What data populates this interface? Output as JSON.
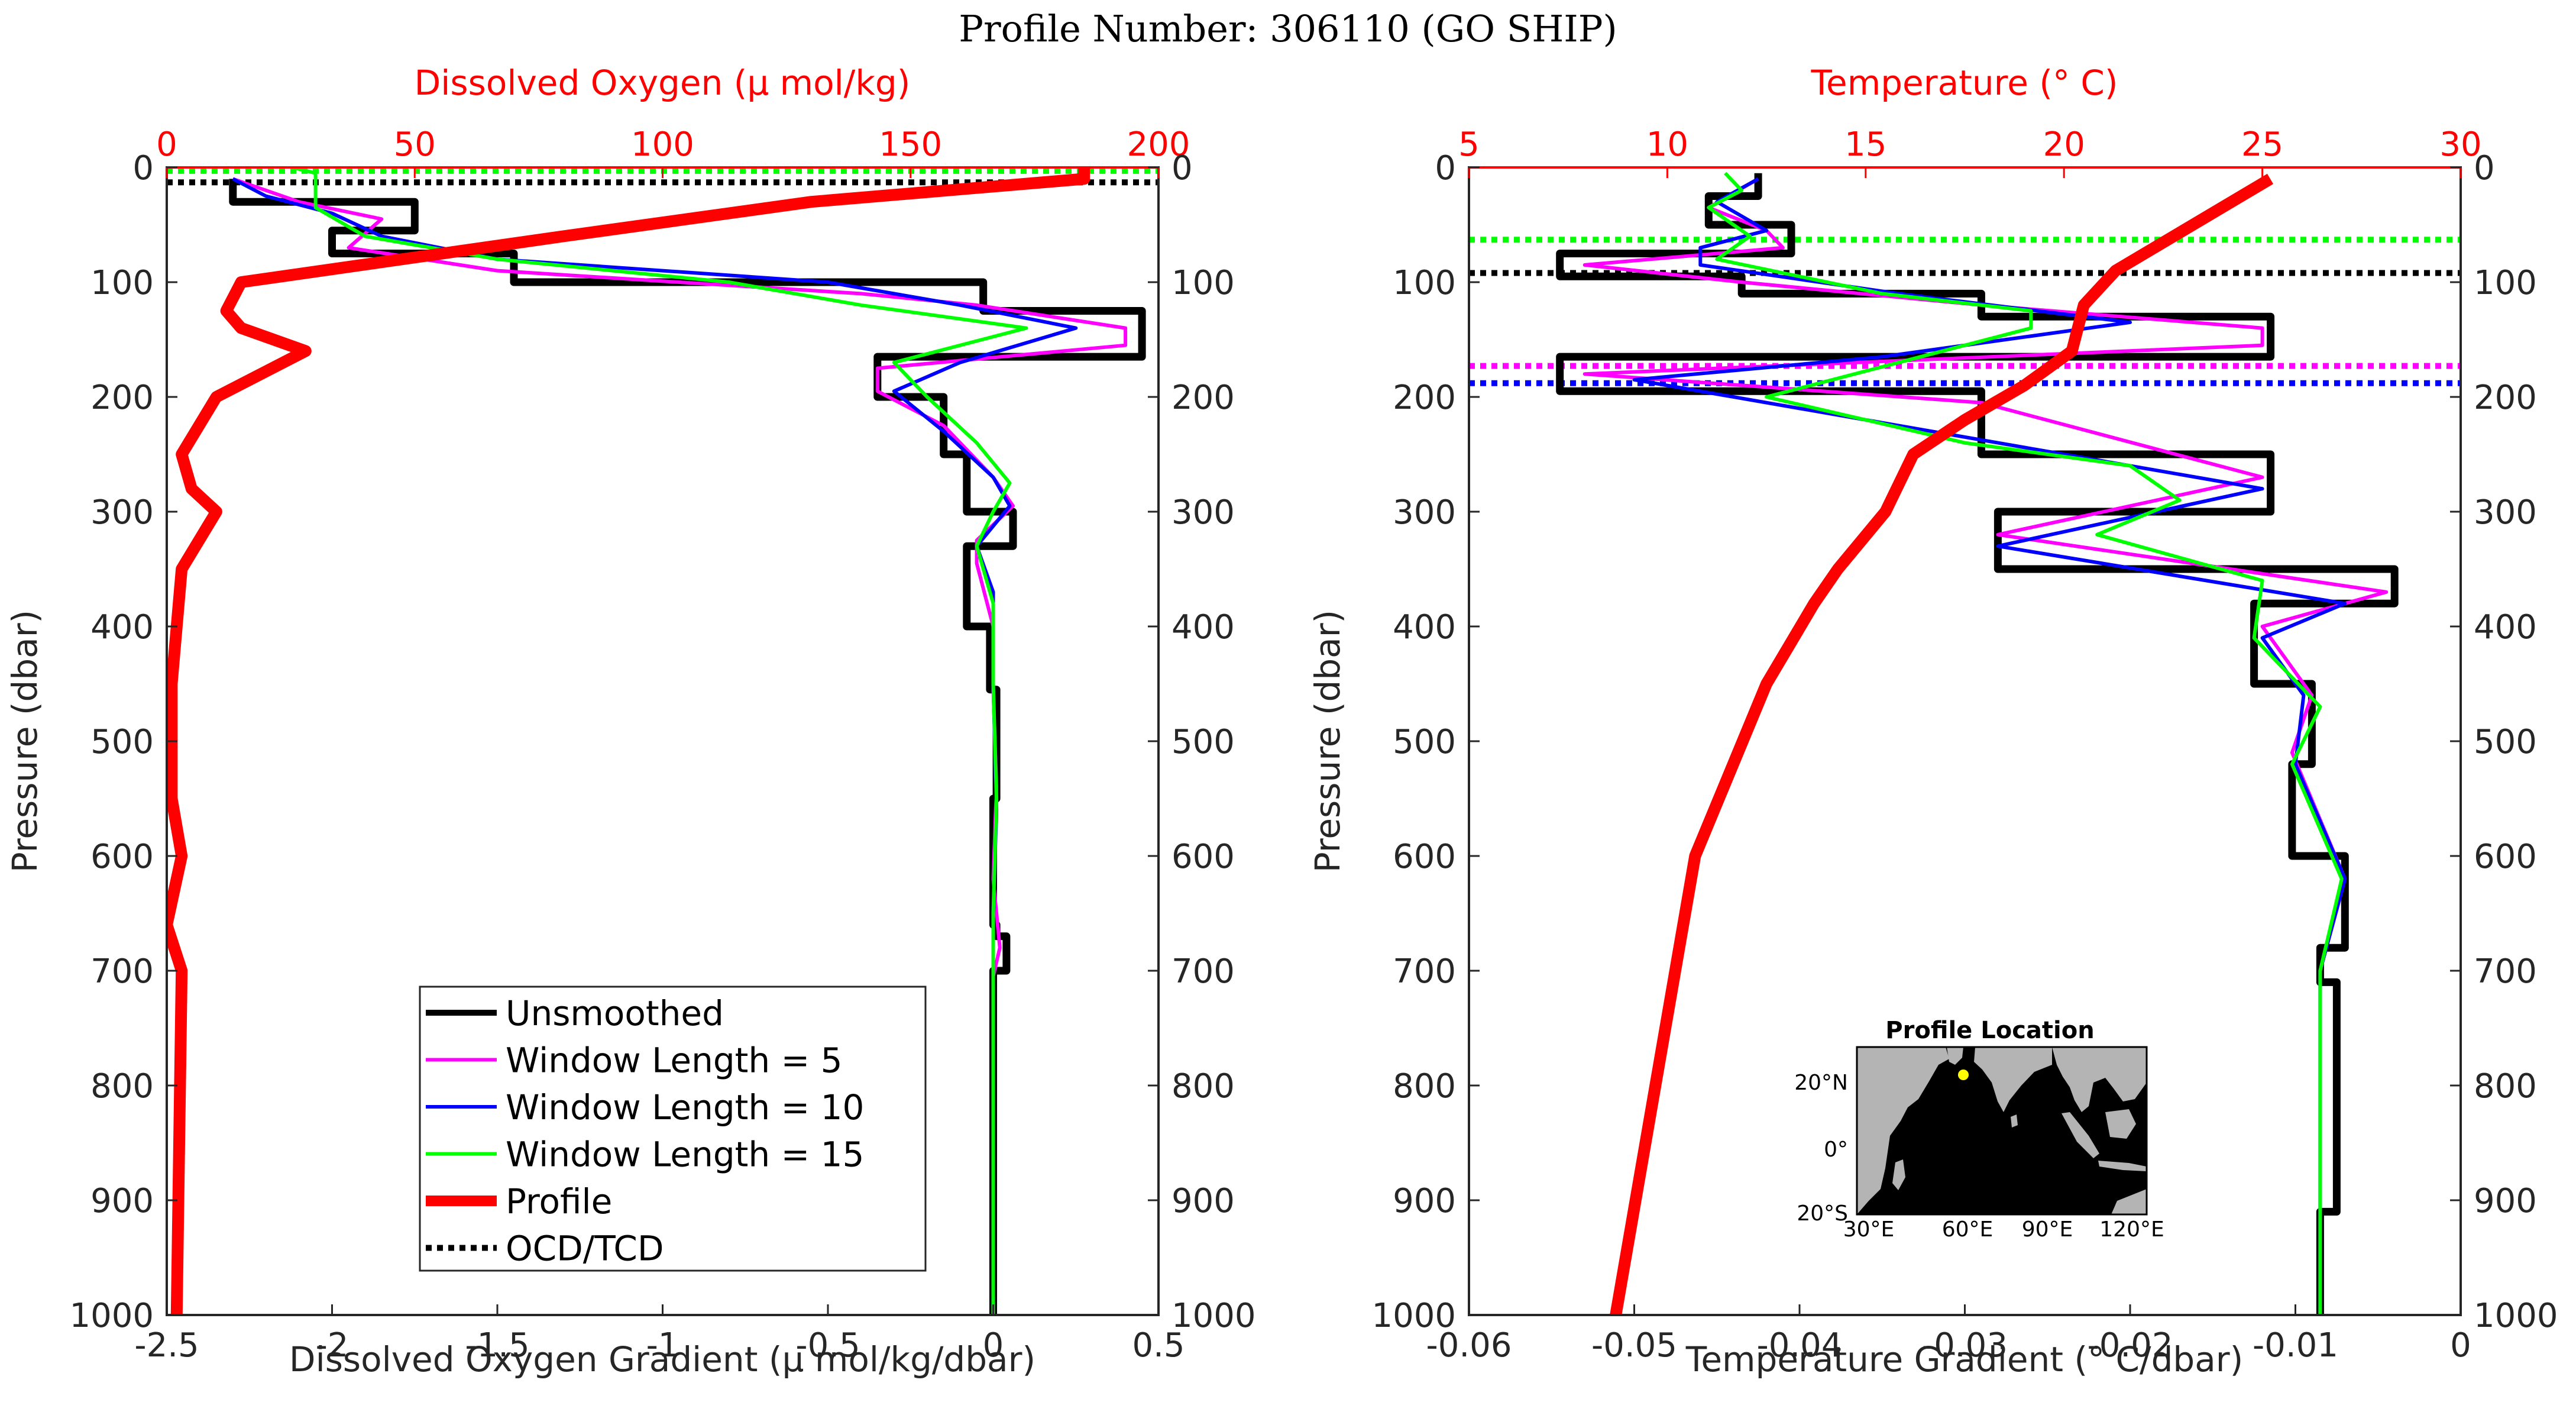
{
  "figure_title": "Profile Number: 306110 (GO SHIP)",
  "colors": {
    "unsmoothed": "#000000",
    "w5": "#ff00ff",
    "w10": "#0000ff",
    "w15": "#00ff00",
    "profile": "#ff0000",
    "top_axis": "#ff0000",
    "land": "#b4b4b4",
    "ocean": "#000000",
    "marker": "#ffff00"
  },
  "chart_data": [
    {
      "type": "line",
      "panel": "left",
      "title": "",
      "xlabel": "Dissolved Oxygen Gradient (μ mol/kg/dbar)",
      "ylabel": "Pressure (dbar)",
      "top_xlabel": "Dissolved Oxygen (μ mol/kg)",
      "xlim": [
        -2.5,
        0.5
      ],
      "top_xlim": [
        0,
        200
      ],
      "ylim": [
        0,
        1000
      ],
      "y_reversed": true,
      "xticks": [
        "-2.5",
        "-2",
        "-1.5",
        "-1",
        "-0.5",
        "0",
        "0.5"
      ],
      "top_xticks": [
        "0",
        "50",
        "100",
        "150",
        "200"
      ],
      "yticks": [
        "0",
        "100",
        "200",
        "300",
        "400",
        "500",
        "600",
        "700",
        "800",
        "900",
        "1000"
      ],
      "right_yticks": [
        "0",
        "100",
        "200",
        "300",
        "400",
        "500",
        "600",
        "700",
        "800",
        "900",
        "1000"
      ],
      "legend": {
        "placement": "lower-center",
        "entries": [
          "Unsmoothed",
          "Window Length = 5",
          "Window Length = 10",
          "Window Length = 15",
          "Profile",
          "OCD/TCD"
        ]
      },
      "series": [
        {
          "name": "Unsmoothed",
          "axis": "bottom",
          "style": "step",
          "color_key": "unsmoothed",
          "x": [
            -2.3,
            -2.3,
            -1.75,
            -1.75,
            -2.0,
            -2.0,
            -1.45,
            -1.45,
            -0.03,
            -0.03,
            0.45,
            0.45,
            -0.35,
            -0.35,
            -0.15,
            -0.15,
            -0.08,
            -0.08,
            0.06,
            0.06,
            -0.08,
            -0.08,
            -0.01,
            -0.01,
            0.01,
            0.01,
            0.0,
            0.0,
            0.01,
            0.01,
            0.04,
            0.04,
            0.0,
            0.0,
            0.0
          ],
          "y": [
            10,
            30,
            30,
            55,
            55,
            75,
            75,
            100,
            100,
            125,
            125,
            165,
            165,
            200,
            200,
            250,
            250,
            300,
            300,
            330,
            330,
            400,
            400,
            455,
            455,
            550,
            550,
            660,
            660,
            670,
            670,
            700,
            700,
            800,
            1000
          ]
        },
        {
          "name": "Window Length = 5",
          "axis": "bottom",
          "color_key": "w5",
          "x": [
            -2.3,
            -2.1,
            -1.85,
            -1.95,
            -1.5,
            -0.4,
            -0.05,
            0.4,
            0.4,
            -0.35,
            -0.35,
            -0.15,
            0.0,
            0.06,
            -0.05,
            -0.05,
            0.0,
            0.0,
            0.01,
            0.0,
            0.02,
            0.0,
            0.0
          ],
          "y": [
            10,
            30,
            45,
            70,
            90,
            110,
            120,
            140,
            155,
            175,
            195,
            225,
            270,
            295,
            325,
            345,
            400,
            455,
            540,
            620,
            680,
            705,
            1000
          ]
        },
        {
          "name": "Window Length = 10",
          "axis": "bottom",
          "color_key": "w10",
          "x": [
            -2.3,
            -2.2,
            -2.0,
            -1.85,
            -1.5,
            -0.5,
            -0.1,
            0.25,
            -0.1,
            -0.3,
            -0.15,
            0.0,
            0.05,
            -0.05,
            0.0,
            0.0,
            0.01,
            0.0,
            0.0
          ],
          "y": [
            10,
            25,
            40,
            60,
            80,
            100,
            120,
            140,
            170,
            195,
            230,
            270,
            295,
            330,
            370,
            450,
            560,
            650,
            1000
          ]
        },
        {
          "name": "Window Length = 15",
          "axis": "bottom",
          "color_key": "w15",
          "x": [
            -2.12,
            -2.05,
            -2.05,
            -1.9,
            -1.5,
            -0.8,
            -0.4,
            0.1,
            -0.3,
            -0.2,
            -0.05,
            0.05,
            0.0,
            -0.05,
            0.0,
            0.0,
            0.01,
            0.0,
            0.0
          ],
          "y": [
            0,
            5,
            35,
            60,
            80,
            100,
            120,
            140,
            170,
            200,
            240,
            275,
            300,
            330,
            380,
            450,
            550,
            650,
            1000
          ]
        },
        {
          "name": "Profile",
          "axis": "top",
          "color_key": "profile",
          "x": [
            185,
            185,
            130,
            80,
            15,
            12,
            15,
            28,
            10,
            3,
            5,
            10,
            3,
            1,
            1,
            3,
            0,
            3,
            2
          ],
          "y": [
            0,
            10,
            30,
            60,
            100,
            125,
            140,
            160,
            200,
            250,
            280,
            300,
            350,
            450,
            550,
            600,
            660,
            700,
            1000
          ]
        }
      ],
      "threshold_lines": [
        {
          "y": 3,
          "color_key": "w15"
        },
        {
          "y": 13,
          "color_key": "unsmoothed"
        }
      ]
    },
    {
      "type": "line",
      "panel": "right",
      "title": "",
      "xlabel": "Temperature Gradient (° C/dbar)",
      "ylabel": "Pressure (dbar)",
      "top_xlabel": "Temperature (° C)",
      "xlim": [
        -0.06,
        0
      ],
      "top_xlim": [
        5,
        30
      ],
      "ylim": [
        0,
        1000
      ],
      "y_reversed": true,
      "xticks": [
        "-0.06",
        "-0.05",
        "-0.04",
        "-0.03",
        "-0.02",
        "-0.01",
        "0"
      ],
      "top_xticks": [
        "5",
        "10",
        "15",
        "20",
        "25",
        "30"
      ],
      "yticks": [
        "0",
        "100",
        "200",
        "300",
        "400",
        "500",
        "600",
        "700",
        "800",
        "900",
        "1000"
      ],
      "right_yticks": [
        "0",
        "100",
        "200",
        "300",
        "400",
        "500",
        "600",
        "700",
        "800",
        "900",
        "1000"
      ],
      "series": [
        {
          "name": "Unsmoothed",
          "axis": "bottom",
          "style": "step",
          "color_key": "unsmoothed",
          "x": [
            -0.0425,
            -0.0425,
            -0.0455,
            -0.0455,
            -0.0405,
            -0.0405,
            -0.0545,
            -0.0545,
            -0.0435,
            -0.0435,
            -0.029,
            -0.029,
            -0.0115,
            -0.0115,
            -0.0545,
            -0.0545,
            -0.029,
            -0.029,
            -0.0115,
            -0.0115,
            -0.028,
            -0.028,
            -0.004,
            -0.004,
            -0.0125,
            -0.0125,
            -0.009,
            -0.009,
            -0.0102,
            -0.0102,
            -0.007,
            -0.007,
            -0.0085,
            -0.0085,
            -0.0075,
            -0.0075,
            -0.0085,
            -0.0085
          ],
          "y": [
            5,
            25,
            25,
            50,
            50,
            75,
            75,
            95,
            95,
            110,
            110,
            130,
            130,
            165,
            165,
            195,
            195,
            250,
            250,
            300,
            300,
            350,
            350,
            380,
            380,
            450,
            450,
            520,
            520,
            600,
            600,
            680,
            680,
            710,
            710,
            910,
            910,
            1000
          ]
        },
        {
          "name": "Window Length = 5",
          "axis": "bottom",
          "color_key": "w5",
          "x": [
            -0.0425,
            -0.0455,
            -0.042,
            -0.041,
            -0.053,
            -0.0435,
            -0.029,
            -0.012,
            -0.012,
            -0.053,
            -0.029,
            -0.012,
            -0.028,
            -0.0045,
            -0.012,
            -0.009,
            -0.0102,
            -0.007,
            -0.0085,
            -0.0085
          ],
          "y": [
            10,
            35,
            55,
            70,
            85,
            100,
            120,
            140,
            155,
            180,
            205,
            270,
            320,
            370,
            400,
            460,
            510,
            620,
            700,
            1000
          ]
        },
        {
          "name": "Window Length = 10",
          "axis": "bottom",
          "color_key": "w10",
          "x": [
            -0.0425,
            -0.045,
            -0.042,
            -0.046,
            -0.046,
            -0.034,
            -0.02,
            -0.035,
            -0.05,
            -0.04,
            -0.028,
            -0.012,
            -0.028,
            -0.007,
            -0.012,
            -0.0095,
            -0.01,
            -0.007,
            -0.0085,
            -0.0085
          ],
          "y": [
            10,
            30,
            55,
            70,
            85,
            110,
            135,
            165,
            185,
            210,
            240,
            280,
            330,
            380,
            410,
            460,
            520,
            620,
            700,
            1000
          ]
        },
        {
          "name": "Window Length = 15",
          "axis": "bottom",
          "color_key": "w15",
          "x": [
            -0.0445,
            -0.0435,
            -0.0455,
            -0.043,
            -0.045,
            -0.035,
            -0.026,
            -0.026,
            -0.042,
            -0.03,
            -0.02,
            -0.017,
            -0.022,
            -0.012,
            -0.0125,
            -0.0085,
            -0.0102,
            -0.0072,
            -0.0085,
            -0.0085
          ],
          "y": [
            5,
            20,
            35,
            60,
            80,
            110,
            125,
            140,
            200,
            240,
            260,
            290,
            320,
            360,
            410,
            470,
            520,
            620,
            700,
            1000
          ]
        },
        {
          "name": "Profile",
          "axis": "top",
          "color_key": "profile",
          "x": [
            25.2,
            21.3,
            20.5,
            20.2,
            19.0,
            17.5,
            16.2,
            15.5,
            14.3,
            13.7,
            12.5,
            10.7,
            8.7
          ],
          "y": [
            10,
            90,
            120,
            160,
            190,
            220,
            250,
            300,
            350,
            380,
            450,
            600,
            1000
          ]
        }
      ],
      "threshold_lines": [
        {
          "y": 63,
          "color_key": "w15"
        },
        {
          "y": 92,
          "color_key": "unsmoothed"
        },
        {
          "y": 173,
          "color_key": "w5"
        },
        {
          "y": 188,
          "color_key": "w10"
        }
      ],
      "inset_map": {
        "title": "Profile Location",
        "xticks": [
          "30°E",
          "60°E",
          "90°E",
          "120°E"
        ],
        "yticks": [
          "20°N",
          "0°",
          "20°S"
        ],
        "marker": {
          "lon": 60,
          "lat": 20
        }
      }
    }
  ]
}
